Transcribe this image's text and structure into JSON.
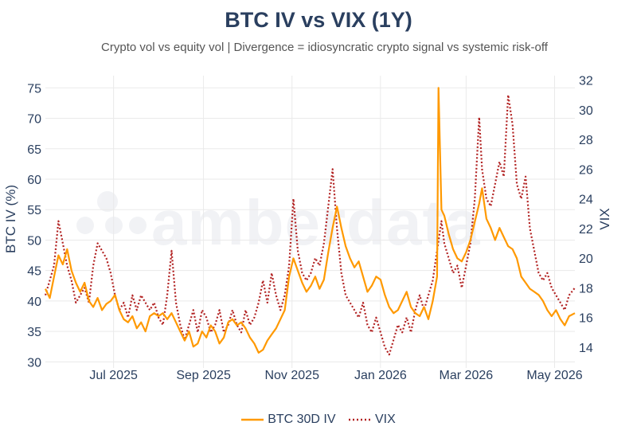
{
  "chart_data": {
    "type": "line",
    "title": "BTC IV vs VIX (1Y)",
    "subtitle": "Crypto vol vs equity vol | Divergence = idiosyncratic crypto signal vs systemic risk-off",
    "y_left_label": "BTC IV (%)",
    "y_right_label": "VIX",
    "y_left_range": [
      29,
      77
    ],
    "y_right_range": [
      12.6,
      32.3
    ],
    "y_left_ticks": [
      "30",
      "35",
      "40",
      "45",
      "50",
      "55",
      "60",
      "65",
      "70",
      "75"
    ],
    "y_right_ticks": [
      "14",
      "16",
      "18",
      "20",
      "22",
      "24",
      "26",
      "28",
      "30",
      "32"
    ],
    "x_range": [
      "2025-05-15",
      "2026-05-15"
    ],
    "x_ticks": [
      {
        "date": "2025-07-01",
        "label": "Jul 2025"
      },
      {
        "date": "2025-09-01",
        "label": "Sep 2025"
      },
      {
        "date": "2025-11-01",
        "label": "Nov 2025"
      },
      {
        "date": "2026-01-01",
        "label": "Jan 2026"
      },
      {
        "date": "2026-03-01",
        "label": "Mar 2026"
      },
      {
        "date": "2026-05-01",
        "label": "May 2026"
      }
    ],
    "grid": true,
    "legend_position": "bottom-center",
    "series": [
      {
        "name": "BTC 30D IV",
        "axis": "left",
        "color": "#ff9900",
        "style": "solid",
        "points": [
          [
            "2025-05-15",
            42
          ],
          [
            "2025-05-18",
            40.5
          ],
          [
            "2025-05-21",
            44
          ],
          [
            "2025-05-24",
            47.5
          ],
          [
            "2025-05-27",
            46
          ],
          [
            "2025-05-30",
            48.5
          ],
          [
            "2025-06-02",
            45
          ],
          [
            "2025-06-05",
            43
          ],
          [
            "2025-06-08",
            41.5
          ],
          [
            "2025-06-11",
            43
          ],
          [
            "2025-06-14",
            40
          ],
          [
            "2025-06-17",
            39
          ],
          [
            "2025-06-20",
            40.5
          ],
          [
            "2025-06-23",
            38.5
          ],
          [
            "2025-06-26",
            39.5
          ],
          [
            "2025-06-29",
            40
          ],
          [
            "2025-07-02",
            41
          ],
          [
            "2025-07-05",
            38.5
          ],
          [
            "2025-07-08",
            37
          ],
          [
            "2025-07-11",
            36.5
          ],
          [
            "2025-07-14",
            37.5
          ],
          [
            "2025-07-17",
            35.5
          ],
          [
            "2025-07-20",
            36.5
          ],
          [
            "2025-07-23",
            35
          ],
          [
            "2025-07-26",
            37.5
          ],
          [
            "2025-07-29",
            38
          ],
          [
            "2025-08-01",
            37.5
          ],
          [
            "2025-08-04",
            38
          ],
          [
            "2025-08-07",
            37
          ],
          [
            "2025-08-10",
            38
          ],
          [
            "2025-08-13",
            36.5
          ],
          [
            "2025-08-16",
            35
          ],
          [
            "2025-08-19",
            33.5
          ],
          [
            "2025-08-22",
            35
          ],
          [
            "2025-08-25",
            32.5
          ],
          [
            "2025-08-28",
            33
          ],
          [
            "2025-08-31",
            35
          ],
          [
            "2025-09-03",
            34
          ],
          [
            "2025-09-06",
            36
          ],
          [
            "2025-09-09",
            35
          ],
          [
            "2025-09-12",
            33
          ],
          [
            "2025-09-15",
            34
          ],
          [
            "2025-09-18",
            36.5
          ],
          [
            "2025-09-21",
            37
          ],
          [
            "2025-09-24",
            36
          ],
          [
            "2025-09-27",
            36.5
          ],
          [
            "2025-09-30",
            35.5
          ],
          [
            "2025-10-03",
            34
          ],
          [
            "2025-10-06",
            33
          ],
          [
            "2025-10-09",
            31.5
          ],
          [
            "2025-10-12",
            32
          ],
          [
            "2025-10-15",
            33.5
          ],
          [
            "2025-10-18",
            34.5
          ],
          [
            "2025-10-21",
            35.5
          ],
          [
            "2025-10-24",
            37
          ],
          [
            "2025-10-27",
            38.5
          ],
          [
            "2025-10-30",
            44
          ],
          [
            "2025-11-02",
            47
          ],
          [
            "2025-11-05",
            45
          ],
          [
            "2025-11-08",
            43
          ],
          [
            "2025-11-11",
            41.5
          ],
          [
            "2025-11-14",
            42.5
          ],
          [
            "2025-11-17",
            44
          ],
          [
            "2025-11-20",
            42
          ],
          [
            "2025-11-23",
            43.5
          ],
          [
            "2025-11-26",
            48
          ],
          [
            "2025-11-29",
            52
          ],
          [
            "2025-12-02",
            55.5
          ],
          [
            "2025-12-05",
            52
          ],
          [
            "2025-12-08",
            49
          ],
          [
            "2025-12-11",
            47
          ],
          [
            "2025-12-14",
            45.5
          ],
          [
            "2025-12-17",
            46.5
          ],
          [
            "2025-12-20",
            44
          ],
          [
            "2025-12-23",
            41.5
          ],
          [
            "2025-12-26",
            42.5
          ],
          [
            "2025-12-29",
            44
          ],
          [
            "2026-01-01",
            43.5
          ],
          [
            "2026-01-04",
            41
          ],
          [
            "2026-01-07",
            39
          ],
          [
            "2026-01-10",
            38
          ],
          [
            "2026-01-13",
            38.5
          ],
          [
            "2026-01-16",
            40
          ],
          [
            "2026-01-19",
            41.5
          ],
          [
            "2026-01-22",
            39
          ],
          [
            "2026-01-25",
            38
          ],
          [
            "2026-01-28",
            37.5
          ],
          [
            "2026-01-31",
            39
          ],
          [
            "2026-02-03",
            37
          ],
          [
            "2026-02-06",
            40
          ],
          [
            "2026-02-09",
            44
          ],
          [
            "2026-02-10",
            75
          ],
          [
            "2026-02-12",
            55
          ],
          [
            "2026-02-14",
            54
          ],
          [
            "2026-02-17",
            51
          ],
          [
            "2026-02-20",
            48.5
          ],
          [
            "2026-02-23",
            47
          ],
          [
            "2026-02-26",
            46.5
          ],
          [
            "2026-03-01",
            48
          ],
          [
            "2026-03-04",
            50
          ],
          [
            "2026-03-07",
            53
          ],
          [
            "2026-03-10",
            56
          ],
          [
            "2026-03-12",
            58.5
          ],
          [
            "2026-03-15",
            53.5
          ],
          [
            "2026-03-18",
            52
          ],
          [
            "2026-03-21",
            50
          ],
          [
            "2026-03-24",
            52
          ],
          [
            "2026-03-27",
            50.5
          ],
          [
            "2026-03-30",
            49
          ],
          [
            "2026-04-02",
            48.5
          ],
          [
            "2026-04-05",
            47
          ],
          [
            "2026-04-08",
            44
          ],
          [
            "2026-04-11",
            43
          ],
          [
            "2026-04-14",
            42
          ],
          [
            "2026-04-17",
            41.5
          ],
          [
            "2026-04-20",
            41
          ],
          [
            "2026-04-23",
            40
          ],
          [
            "2026-04-26",
            38.5
          ],
          [
            "2026-04-29",
            37.5
          ],
          [
            "2026-05-02",
            38.5
          ],
          [
            "2026-05-05",
            37
          ],
          [
            "2026-05-08",
            36
          ],
          [
            "2026-05-11",
            37.5
          ],
          [
            "2026-05-15",
            38
          ]
        ]
      },
      {
        "name": "VIX",
        "axis": "right",
        "color": "#b22222",
        "style": "dotted",
        "points": [
          [
            "2025-05-15",
            17.5
          ],
          [
            "2025-05-18",
            18.5
          ],
          [
            "2025-05-21",
            19.5
          ],
          [
            "2025-05-24",
            22.5
          ],
          [
            "2025-05-27",
            21
          ],
          [
            "2025-05-30",
            19.5
          ],
          [
            "2025-06-02",
            18.5
          ],
          [
            "2025-06-05",
            17
          ],
          [
            "2025-06-08",
            17.5
          ],
          [
            "2025-06-11",
            18
          ],
          [
            "2025-06-14",
            17
          ],
          [
            "2025-06-17",
            19.5
          ],
          [
            "2025-06-20",
            21
          ],
          [
            "2025-06-23",
            20.5
          ],
          [
            "2025-06-26",
            20
          ],
          [
            "2025-06-29",
            19
          ],
          [
            "2025-07-02",
            17.5
          ],
          [
            "2025-07-05",
            16.5
          ],
          [
            "2025-07-08",
            17
          ],
          [
            "2025-07-11",
            16
          ],
          [
            "2025-07-14",
            17.5
          ],
          [
            "2025-07-17",
            16.5
          ],
          [
            "2025-07-20",
            17.5
          ],
          [
            "2025-07-23",
            17
          ],
          [
            "2025-07-26",
            16.5
          ],
          [
            "2025-07-29",
            17
          ],
          [
            "2025-08-01",
            16
          ],
          [
            "2025-08-04",
            15.5
          ],
          [
            "2025-08-07",
            17.5
          ],
          [
            "2025-08-10",
            20.5
          ],
          [
            "2025-08-13",
            17
          ],
          [
            "2025-08-16",
            15.5
          ],
          [
            "2025-08-19",
            14.5
          ],
          [
            "2025-08-22",
            15.5
          ],
          [
            "2025-08-25",
            16.5
          ],
          [
            "2025-08-28",
            15
          ],
          [
            "2025-08-31",
            16.5
          ],
          [
            "2025-09-03",
            16
          ],
          [
            "2025-09-06",
            15
          ],
          [
            "2025-09-09",
            15.5
          ],
          [
            "2025-09-12",
            16.5
          ],
          [
            "2025-09-15",
            15
          ],
          [
            "2025-09-18",
            15.5
          ],
          [
            "2025-09-21",
            16.5
          ],
          [
            "2025-09-24",
            15.5
          ],
          [
            "2025-09-27",
            15
          ],
          [
            "2025-09-30",
            16.5
          ],
          [
            "2025-10-03",
            15.5
          ],
          [
            "2025-10-06",
            16
          ],
          [
            "2025-10-09",
            17
          ],
          [
            "2025-10-12",
            18.5
          ],
          [
            "2025-10-15",
            17
          ],
          [
            "2025-10-18",
            19
          ],
          [
            "2025-10-21",
            17.5
          ],
          [
            "2025-10-24",
            16.5
          ],
          [
            "2025-10-27",
            17.5
          ],
          [
            "2025-10-30",
            19.5
          ],
          [
            "2025-11-02",
            24
          ],
          [
            "2025-11-05",
            20.5
          ],
          [
            "2025-11-08",
            19
          ],
          [
            "2025-11-11",
            18.5
          ],
          [
            "2025-11-14",
            19
          ],
          [
            "2025-11-17",
            20
          ],
          [
            "2025-11-20",
            19.5
          ],
          [
            "2025-11-23",
            21
          ],
          [
            "2025-11-26",
            23.5
          ],
          [
            "2025-11-29",
            26
          ],
          [
            "2025-12-02",
            22
          ],
          [
            "2025-12-05",
            19
          ],
          [
            "2025-12-08",
            17.5
          ],
          [
            "2025-12-11",
            17
          ],
          [
            "2025-12-14",
            16.5
          ],
          [
            "2025-12-17",
            16
          ],
          [
            "2025-12-20",
            17
          ],
          [
            "2025-12-23",
            15.5
          ],
          [
            "2025-12-26",
            15
          ],
          [
            "2025-12-29",
            16
          ],
          [
            "2026-01-01",
            15
          ],
          [
            "2026-01-04",
            14
          ],
          [
            "2026-01-07",
            13.5
          ],
          [
            "2026-01-10",
            14.5
          ],
          [
            "2026-01-13",
            15.5
          ],
          [
            "2026-01-16",
            15
          ],
          [
            "2026-01-19",
            16
          ],
          [
            "2026-01-22",
            15
          ],
          [
            "2026-01-25",
            16.5
          ],
          [
            "2026-01-28",
            17.5
          ],
          [
            "2026-01-31",
            16.5
          ],
          [
            "2026-02-03",
            17.5
          ],
          [
            "2026-02-06",
            18.5
          ],
          [
            "2026-02-09",
            20.5
          ],
          [
            "2026-02-12",
            22.5
          ],
          [
            "2026-02-14",
            21
          ],
          [
            "2026-02-17",
            20
          ],
          [
            "2026-02-20",
            19
          ],
          [
            "2026-02-23",
            19.5
          ],
          [
            "2026-02-26",
            18
          ],
          [
            "2026-03-01",
            19.5
          ],
          [
            "2026-03-04",
            21
          ],
          [
            "2026-03-07",
            24
          ],
          [
            "2026-03-10",
            29.5
          ],
          [
            "2026-03-12",
            26
          ],
          [
            "2026-03-15",
            24
          ],
          [
            "2026-03-18",
            23.5
          ],
          [
            "2026-03-21",
            25
          ],
          [
            "2026-03-24",
            26.5
          ],
          [
            "2026-03-27",
            25.5
          ],
          [
            "2026-03-30",
            31
          ],
          [
            "2026-04-02",
            29
          ],
          [
            "2026-04-05",
            25
          ],
          [
            "2026-04-08",
            24
          ],
          [
            "2026-04-11",
            25.5
          ],
          [
            "2026-04-14",
            22
          ],
          [
            "2026-04-17",
            20.5
          ],
          [
            "2026-04-20",
            19
          ],
          [
            "2026-04-23",
            18.5
          ],
          [
            "2026-04-26",
            19
          ],
          [
            "2026-04-29",
            18
          ],
          [
            "2026-05-02",
            17.5
          ],
          [
            "2026-05-05",
            17
          ],
          [
            "2026-05-08",
            16.5
          ],
          [
            "2026-05-11",
            17.5
          ],
          [
            "2026-05-15",
            18
          ]
        ]
      }
    ]
  },
  "watermark": "amberdata",
  "legend": {
    "items": [
      {
        "label": "BTC 30D IV",
        "color": "#ff9900",
        "style": "solid"
      },
      {
        "label": "VIX",
        "color": "#b22222",
        "style": "dotted"
      }
    ]
  }
}
